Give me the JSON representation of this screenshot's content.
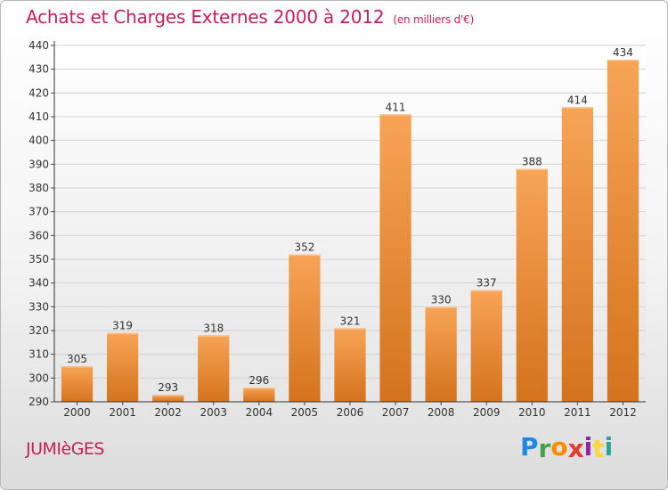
{
  "header": {
    "title": "Achats et Charges Externes 2000 à 2012",
    "subtitle": "(en milliers d'€)"
  },
  "footer": {
    "commune": "JUMIèGES",
    "logo": {
      "letters": [
        "P",
        "r",
        "o",
        "x",
        "i",
        "t",
        "i"
      ],
      "colors": [
        "#1e88e5",
        "#43a047",
        "#fb8c00",
        "#e53935",
        "#8e24aa",
        "#fdd835",
        "#26a69a"
      ]
    }
  },
  "chart_data": {
    "type": "bar",
    "categories": [
      "2000",
      "2001",
      "2002",
      "2003",
      "2004",
      "2005",
      "2006",
      "2007",
      "2008",
      "2009",
      "2010",
      "2011",
      "2012"
    ],
    "values": [
      305,
      319,
      293,
      318,
      296,
      352,
      321,
      411,
      330,
      337,
      388,
      414,
      434
    ],
    "data_labels": [
      "305",
      "319",
      "293",
      "318",
      "296",
      "352",
      "321",
      "411",
      "330",
      "337",
      "388",
      "414",
      "434"
    ],
    "title": "Achats et Charges Externes 2000 à 2012",
    "subtitle": "(en milliers d'€)",
    "ylim": [
      290,
      440
    ],
    "y_ticks": [
      290,
      300,
      310,
      320,
      330,
      340,
      350,
      360,
      370,
      380,
      390,
      400,
      410,
      420,
      430,
      440
    ],
    "grid": true,
    "bar_color_top": "#f7a457",
    "bar_color_bottom": "#d4731c"
  }
}
